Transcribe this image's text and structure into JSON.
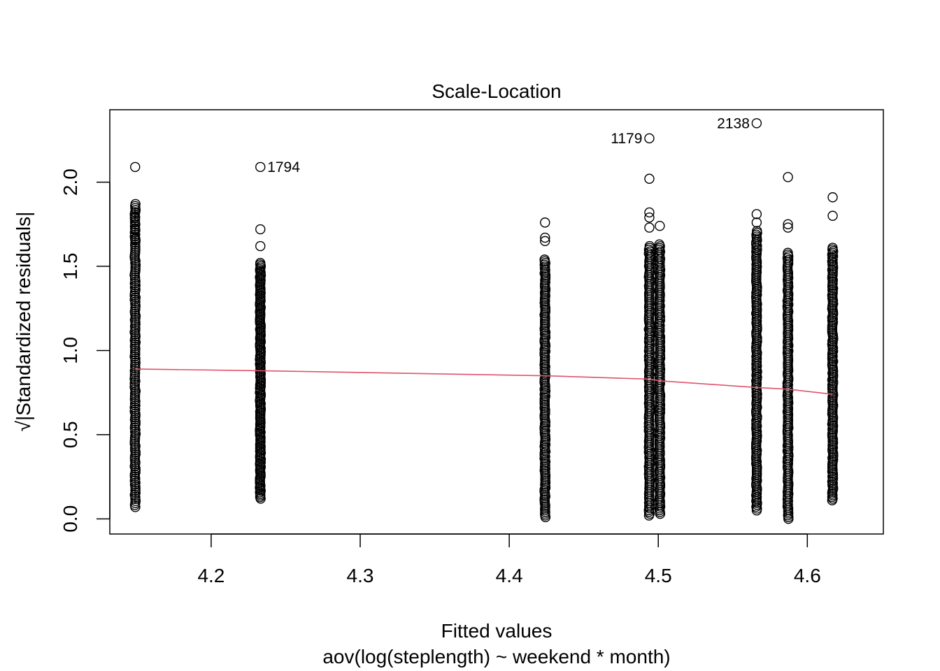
{
  "chart_data": {
    "type": "scatter",
    "title": "Scale-Location",
    "xlabel": "Fitted values",
    "subtitle": "aov(log(steplength) ~ weekend * month)",
    "ylabel": "√|Standardized residuals|",
    "xlim": [
      4.132,
      4.651
    ],
    "ylim": [
      -0.09,
      2.43
    ],
    "x_ticks": [
      4.2,
      4.3,
      4.4,
      4.5,
      4.6
    ],
    "x_tick_labels": [
      "4.2",
      "4.3",
      "4.4",
      "4.5",
      "4.6"
    ],
    "y_ticks": [
      0.0,
      0.5,
      1.0,
      1.5,
      2.0
    ],
    "y_tick_labels": [
      "0.0",
      "0.5",
      "1.0",
      "1.5",
      "2.0"
    ],
    "grid": false,
    "groups": [
      {
        "x": 4.149,
        "ymin": 0.07,
        "ymax": 1.87,
        "extras": [
          2.09,
          1.82,
          1.79,
          1.72,
          1.66
        ]
      },
      {
        "x": 4.233,
        "ymin": 0.12,
        "ymax": 1.52,
        "extras": [
          2.09,
          1.72,
          1.62
        ]
      },
      {
        "x": 4.424,
        "ymin": 0.01,
        "ymax": 1.54,
        "extras": [
          1.76,
          1.67,
          1.65
        ]
      },
      {
        "x": 4.494,
        "ymin": 0.02,
        "ymax": 1.62,
        "extras": [
          2.26,
          2.02,
          1.82,
          1.79,
          1.73
        ]
      },
      {
        "x": 4.501,
        "ymin": 0.03,
        "ymax": 1.63,
        "extras": [
          1.74
        ]
      },
      {
        "x": 4.566,
        "ymin": 0.05,
        "ymax": 1.71,
        "extras": [
          2.35,
          1.81,
          1.76
        ]
      },
      {
        "x": 4.587,
        "ymin": 0.0,
        "ymax": 1.58,
        "extras": [
          2.03,
          1.75,
          1.73
        ]
      },
      {
        "x": 4.617,
        "ymin": 0.11,
        "ymax": 1.61,
        "extras": [
          1.91,
          1.8
        ]
      }
    ],
    "labeled_points": [
      {
        "label": "1794",
        "x": 4.233,
        "y": 2.09,
        "side": "right"
      },
      {
        "label": "1179",
        "x": 4.494,
        "y": 2.26,
        "side": "left"
      },
      {
        "label": "2138",
        "x": 4.566,
        "y": 2.35,
        "side": "left"
      }
    ],
    "smooth_line": {
      "color": "#DF536B",
      "x": [
        4.149,
        4.233,
        4.424,
        4.494,
        4.501,
        4.566,
        4.587,
        4.617
      ],
      "y": [
        0.89,
        0.88,
        0.85,
        0.83,
        0.82,
        0.78,
        0.77,
        0.74
      ]
    }
  }
}
